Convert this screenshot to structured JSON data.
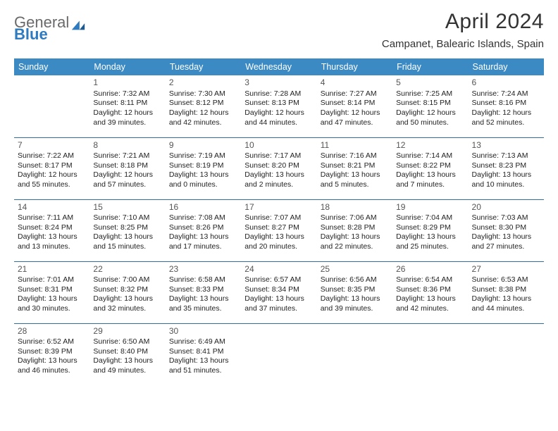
{
  "logo": {
    "word1": "General",
    "word2": "Blue"
  },
  "title": "April 2024",
  "location": "Campanet, Balearic Islands, Spain",
  "colors": {
    "header_bg": "#3b8ac4",
    "header_text": "#ffffff",
    "row_divider": "#2f6fa0",
    "logo_gray": "#6a6a6a",
    "logo_blue": "#2f7bbf"
  },
  "dayHeaders": [
    "Sunday",
    "Monday",
    "Tuesday",
    "Wednesday",
    "Thursday",
    "Friday",
    "Saturday"
  ],
  "weeks": [
    [
      null,
      {
        "n": "1",
        "sr": "Sunrise: 7:32 AM",
        "ss": "Sunset: 8:11 PM",
        "d1": "Daylight: 12 hours",
        "d2": "and 39 minutes."
      },
      {
        "n": "2",
        "sr": "Sunrise: 7:30 AM",
        "ss": "Sunset: 8:12 PM",
        "d1": "Daylight: 12 hours",
        "d2": "and 42 minutes."
      },
      {
        "n": "3",
        "sr": "Sunrise: 7:28 AM",
        "ss": "Sunset: 8:13 PM",
        "d1": "Daylight: 12 hours",
        "d2": "and 44 minutes."
      },
      {
        "n": "4",
        "sr": "Sunrise: 7:27 AM",
        "ss": "Sunset: 8:14 PM",
        "d1": "Daylight: 12 hours",
        "d2": "and 47 minutes."
      },
      {
        "n": "5",
        "sr": "Sunrise: 7:25 AM",
        "ss": "Sunset: 8:15 PM",
        "d1": "Daylight: 12 hours",
        "d2": "and 50 minutes."
      },
      {
        "n": "6",
        "sr": "Sunrise: 7:24 AM",
        "ss": "Sunset: 8:16 PM",
        "d1": "Daylight: 12 hours",
        "d2": "and 52 minutes."
      }
    ],
    [
      {
        "n": "7",
        "sr": "Sunrise: 7:22 AM",
        "ss": "Sunset: 8:17 PM",
        "d1": "Daylight: 12 hours",
        "d2": "and 55 minutes."
      },
      {
        "n": "8",
        "sr": "Sunrise: 7:21 AM",
        "ss": "Sunset: 8:18 PM",
        "d1": "Daylight: 12 hours",
        "d2": "and 57 minutes."
      },
      {
        "n": "9",
        "sr": "Sunrise: 7:19 AM",
        "ss": "Sunset: 8:19 PM",
        "d1": "Daylight: 13 hours",
        "d2": "and 0 minutes."
      },
      {
        "n": "10",
        "sr": "Sunrise: 7:17 AM",
        "ss": "Sunset: 8:20 PM",
        "d1": "Daylight: 13 hours",
        "d2": "and 2 minutes."
      },
      {
        "n": "11",
        "sr": "Sunrise: 7:16 AM",
        "ss": "Sunset: 8:21 PM",
        "d1": "Daylight: 13 hours",
        "d2": "and 5 minutes."
      },
      {
        "n": "12",
        "sr": "Sunrise: 7:14 AM",
        "ss": "Sunset: 8:22 PM",
        "d1": "Daylight: 13 hours",
        "d2": "and 7 minutes."
      },
      {
        "n": "13",
        "sr": "Sunrise: 7:13 AM",
        "ss": "Sunset: 8:23 PM",
        "d1": "Daylight: 13 hours",
        "d2": "and 10 minutes."
      }
    ],
    [
      {
        "n": "14",
        "sr": "Sunrise: 7:11 AM",
        "ss": "Sunset: 8:24 PM",
        "d1": "Daylight: 13 hours",
        "d2": "and 13 minutes."
      },
      {
        "n": "15",
        "sr": "Sunrise: 7:10 AM",
        "ss": "Sunset: 8:25 PM",
        "d1": "Daylight: 13 hours",
        "d2": "and 15 minutes."
      },
      {
        "n": "16",
        "sr": "Sunrise: 7:08 AM",
        "ss": "Sunset: 8:26 PM",
        "d1": "Daylight: 13 hours",
        "d2": "and 17 minutes."
      },
      {
        "n": "17",
        "sr": "Sunrise: 7:07 AM",
        "ss": "Sunset: 8:27 PM",
        "d1": "Daylight: 13 hours",
        "d2": "and 20 minutes."
      },
      {
        "n": "18",
        "sr": "Sunrise: 7:06 AM",
        "ss": "Sunset: 8:28 PM",
        "d1": "Daylight: 13 hours",
        "d2": "and 22 minutes."
      },
      {
        "n": "19",
        "sr": "Sunrise: 7:04 AM",
        "ss": "Sunset: 8:29 PM",
        "d1": "Daylight: 13 hours",
        "d2": "and 25 minutes."
      },
      {
        "n": "20",
        "sr": "Sunrise: 7:03 AM",
        "ss": "Sunset: 8:30 PM",
        "d1": "Daylight: 13 hours",
        "d2": "and 27 minutes."
      }
    ],
    [
      {
        "n": "21",
        "sr": "Sunrise: 7:01 AM",
        "ss": "Sunset: 8:31 PM",
        "d1": "Daylight: 13 hours",
        "d2": "and 30 minutes."
      },
      {
        "n": "22",
        "sr": "Sunrise: 7:00 AM",
        "ss": "Sunset: 8:32 PM",
        "d1": "Daylight: 13 hours",
        "d2": "and 32 minutes."
      },
      {
        "n": "23",
        "sr": "Sunrise: 6:58 AM",
        "ss": "Sunset: 8:33 PM",
        "d1": "Daylight: 13 hours",
        "d2": "and 35 minutes."
      },
      {
        "n": "24",
        "sr": "Sunrise: 6:57 AM",
        "ss": "Sunset: 8:34 PM",
        "d1": "Daylight: 13 hours",
        "d2": "and 37 minutes."
      },
      {
        "n": "25",
        "sr": "Sunrise: 6:56 AM",
        "ss": "Sunset: 8:35 PM",
        "d1": "Daylight: 13 hours",
        "d2": "and 39 minutes."
      },
      {
        "n": "26",
        "sr": "Sunrise: 6:54 AM",
        "ss": "Sunset: 8:36 PM",
        "d1": "Daylight: 13 hours",
        "d2": "and 42 minutes."
      },
      {
        "n": "27",
        "sr": "Sunrise: 6:53 AM",
        "ss": "Sunset: 8:38 PM",
        "d1": "Daylight: 13 hours",
        "d2": "and 44 minutes."
      }
    ],
    [
      {
        "n": "28",
        "sr": "Sunrise: 6:52 AM",
        "ss": "Sunset: 8:39 PM",
        "d1": "Daylight: 13 hours",
        "d2": "and 46 minutes."
      },
      {
        "n": "29",
        "sr": "Sunrise: 6:50 AM",
        "ss": "Sunset: 8:40 PM",
        "d1": "Daylight: 13 hours",
        "d2": "and 49 minutes."
      },
      {
        "n": "30",
        "sr": "Sunrise: 6:49 AM",
        "ss": "Sunset: 8:41 PM",
        "d1": "Daylight: 13 hours",
        "d2": "and 51 minutes."
      },
      null,
      null,
      null,
      null
    ]
  ]
}
